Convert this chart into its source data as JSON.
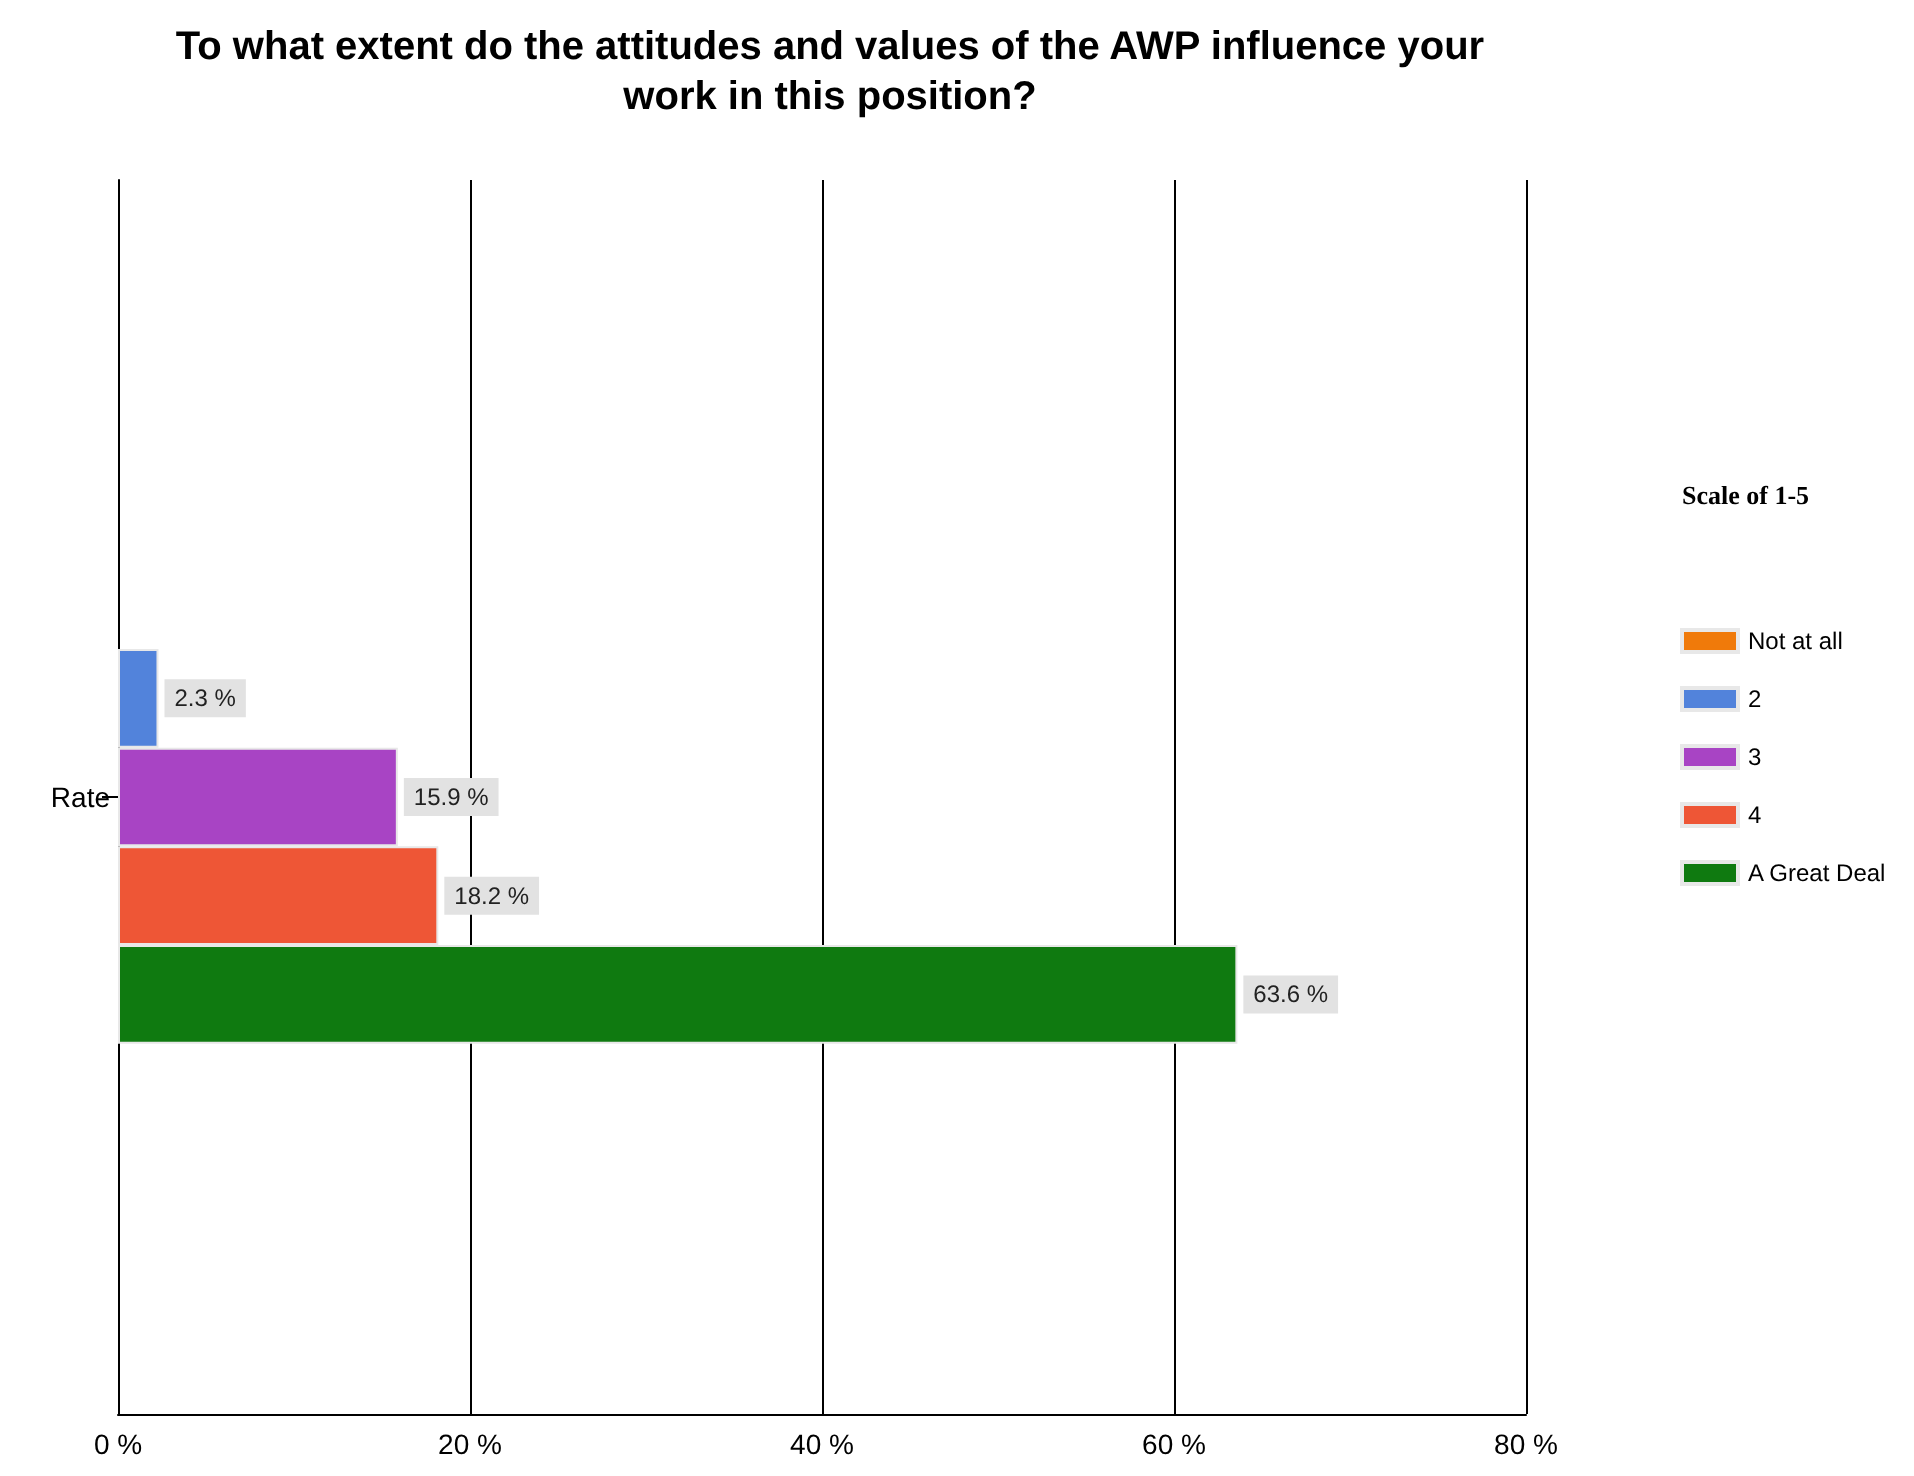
{
  "chart_data": {
    "type": "bar",
    "orientation": "horizontal",
    "title": "To what extent do the attitudes and values of the AWP influence your work in this position?",
    "legend_title": "Scale of 1-5",
    "legend": "right",
    "grid": "x",
    "categories": [
      "Rate"
    ],
    "series": [
      {
        "name": "Not at all",
        "color": "#f07a0a",
        "values": [
          null
        ],
        "value_labels": [
          null
        ]
      },
      {
        "name": "2",
        "color": "#5283db",
        "values": [
          2.3
        ],
        "value_labels": [
          "2.3 %"
        ]
      },
      {
        "name": "3",
        "color": "#a844c4",
        "values": [
          15.9
        ],
        "value_labels": [
          "15.9 %"
        ]
      },
      {
        "name": "4",
        "color": "#ee5636",
        "values": [
          18.2
        ],
        "value_labels": [
          "18.2 %"
        ]
      },
      {
        "name": "A Great Deal",
        "color": "#0f7a10",
        "values": [
          63.6
        ],
        "value_labels": [
          "63.6 %"
        ]
      }
    ],
    "xlim": [
      0,
      80
    ],
    "xticks": [
      {
        "value": 0,
        "label": "0 %"
      },
      {
        "value": 20,
        "label": "20 %"
      },
      {
        "value": 40,
        "label": "40 %"
      },
      {
        "value": 60,
        "label": "60 %"
      },
      {
        "value": 80,
        "label": "80 %"
      }
    ]
  }
}
